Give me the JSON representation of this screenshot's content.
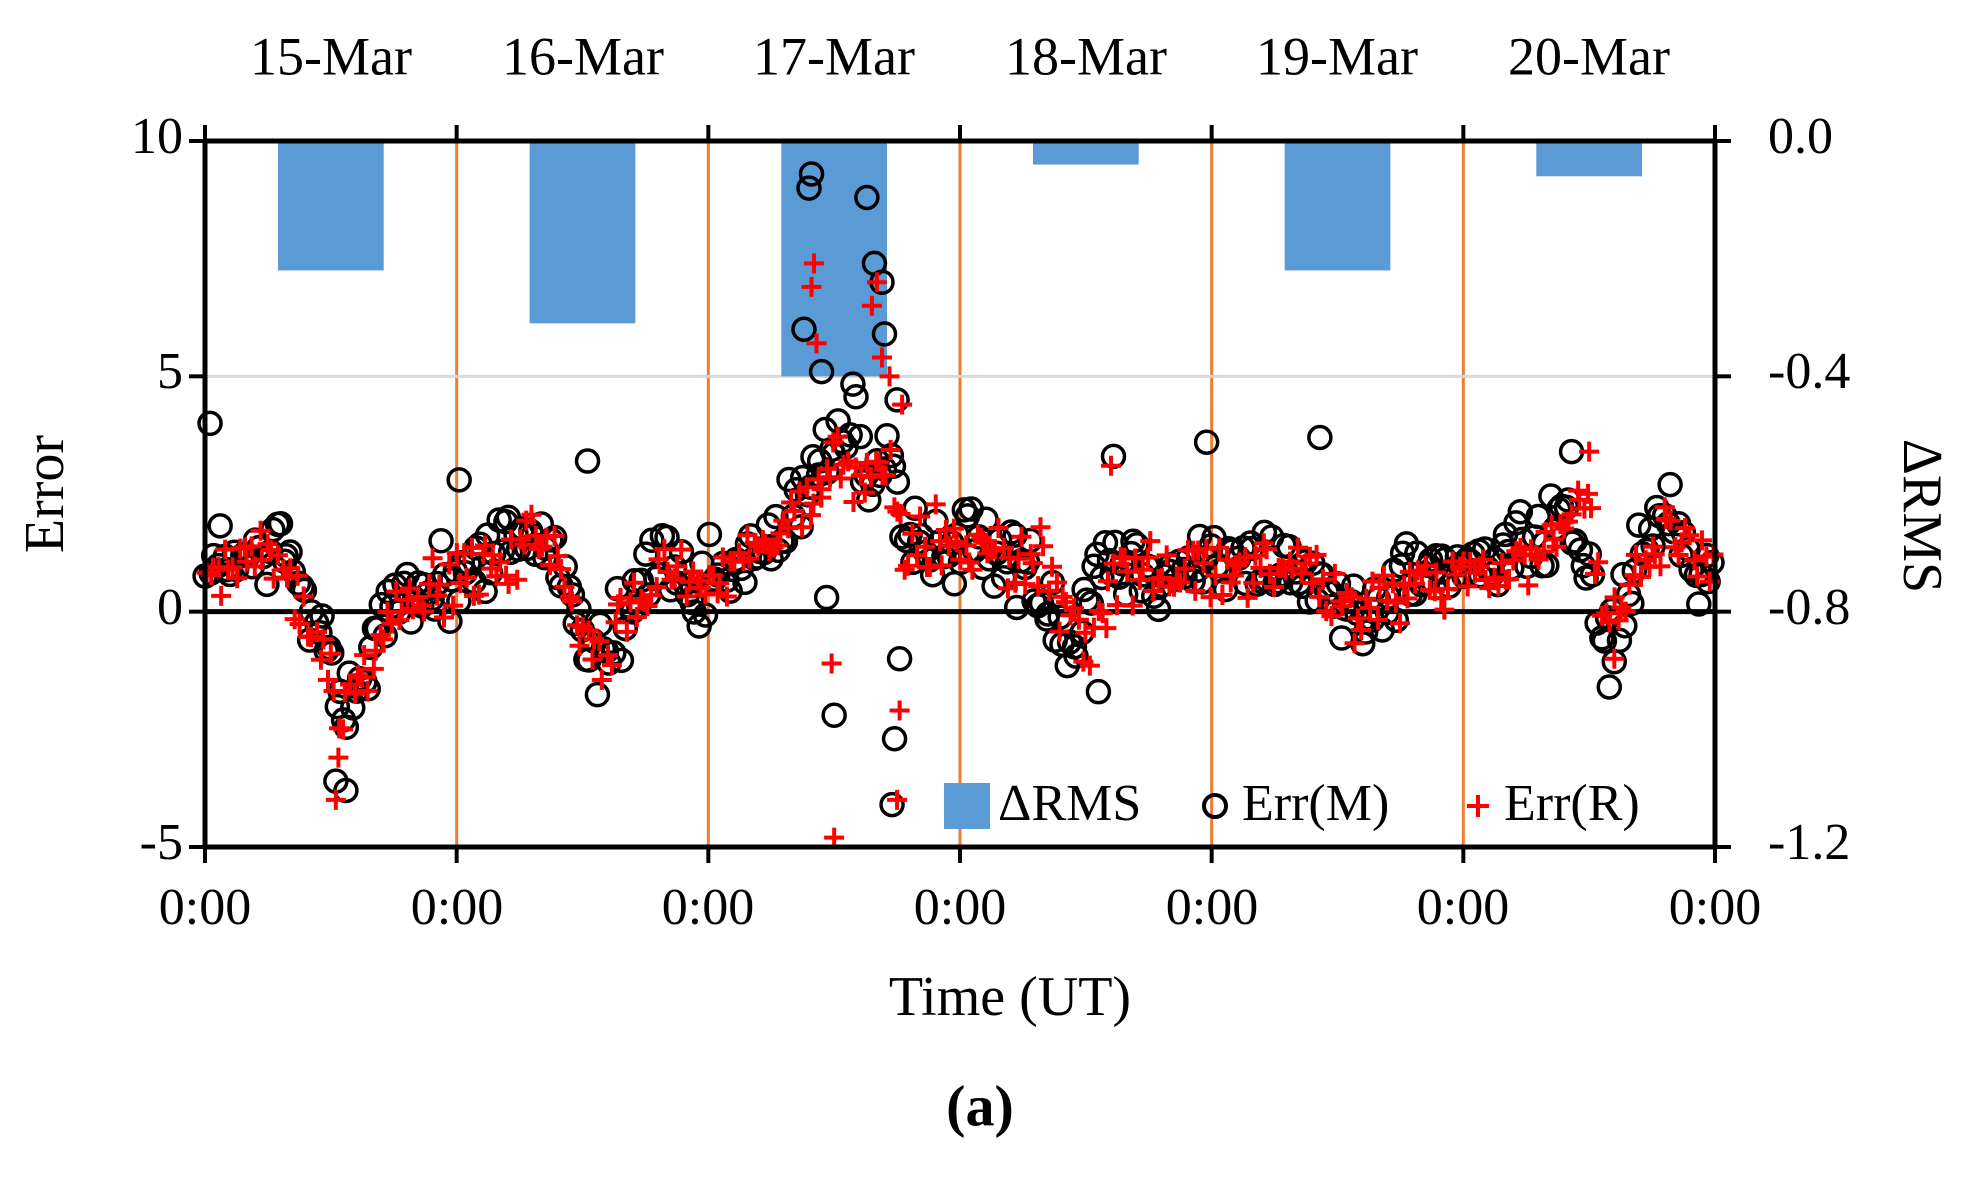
{
  "chart_data": {
    "type": "bar+scatter",
    "panel_label": "(a)",
    "xlabel": "Time (UT)",
    "ylabel_left": "Error",
    "ylabel_right": "ΔRMS",
    "left_axis": {
      "min": -5,
      "max": 10,
      "ticks": [
        10,
        5,
        0,
        -5
      ],
      "tick_labels": [
        "10",
        "5",
        "0",
        "-5"
      ]
    },
    "right_axis": {
      "min": -1.2,
      "max": 0.0,
      "ticks": [
        0.0,
        -0.4,
        -0.8,
        -1.2
      ],
      "tick_labels": [
        "0.0",
        "-0.4",
        "-0.8",
        "-1.2"
      ]
    },
    "x_days": 6,
    "x_tick_labels": [
      "0:00",
      "0:00",
      "0:00",
      "0:00",
      "0:00",
      "0:00",
      "0:00"
    ],
    "dates": [
      "15-Mar",
      "16-Mar",
      "17-Mar",
      "18-Mar",
      "19-Mar",
      "20-Mar"
    ],
    "legend": [
      "ΔRMS",
      "Err(M)",
      "Err(R)"
    ],
    "colors": {
      "bar": "#5b9bd5",
      "marker_m": "#000000",
      "marker_r": "#ff0000",
      "day_line": "#ed7d31",
      "grid": "#d9d9d9"
    },
    "delta_rms": [
      -0.22,
      -0.31,
      -0.4,
      -0.04,
      -0.22,
      -0.06
    ],
    "err_m_anchors": [
      [
        0.0,
        1.0
      ],
      [
        0.05,
        1.2
      ],
      [
        0.15,
        0.9
      ],
      [
        0.3,
        1.4
      ],
      [
        0.42,
        0.0
      ],
      [
        0.5,
        -1.0
      ],
      [
        0.55,
        -2.0
      ],
      [
        0.62,
        -1.2
      ],
      [
        0.7,
        -0.4
      ],
      [
        0.85,
        0.6
      ],
      [
        1.0,
        0.7
      ],
      [
        1.15,
        1.2
      ],
      [
        1.25,
        1.8
      ],
      [
        1.4,
        1.3
      ],
      [
        1.45,
        0.6
      ],
      [
        1.52,
        -0.8
      ],
      [
        1.58,
        -1.2
      ],
      [
        1.65,
        -0.2
      ],
      [
        1.8,
        1.2
      ],
      [
        1.95,
        0.0
      ],
      [
        2.0,
        0.6
      ],
      [
        2.15,
        1.0
      ],
      [
        2.25,
        1.5
      ],
      [
        2.35,
        2.0
      ],
      [
        2.45,
        3.2
      ],
      [
        2.52,
        3.8
      ],
      [
        2.55,
        4.2
      ],
      [
        2.58,
        4.8
      ],
      [
        2.62,
        2.5
      ],
      [
        2.72,
        3.2
      ],
      [
        2.78,
        1.0
      ],
      [
        2.85,
        1.6
      ],
      [
        2.95,
        1.5
      ],
      [
        3.1,
        1.3
      ],
      [
        3.25,
        1.0
      ],
      [
        3.38,
        0.0
      ],
      [
        3.45,
        -0.8
      ],
      [
        3.55,
        1.2
      ],
      [
        3.7,
        1.0
      ],
      [
        3.9,
        0.9
      ],
      [
        4.0,
        1.0
      ],
      [
        4.2,
        1.1
      ],
      [
        4.35,
        1.0
      ],
      [
        4.5,
        0.1
      ],
      [
        4.65,
        0.1
      ],
      [
        4.8,
        0.8
      ],
      [
        5.0,
        0.9
      ],
      [
        5.15,
        1.1
      ],
      [
        5.3,
        1.5
      ],
      [
        5.42,
        2.2
      ],
      [
        5.5,
        0.8
      ],
      [
        5.55,
        -0.2
      ],
      [
        5.6,
        -1.0
      ],
      [
        5.7,
        1.2
      ],
      [
        5.78,
        2.0
      ],
      [
        5.85,
        1.9
      ],
      [
        5.9,
        1.0
      ],
      [
        6.0,
        0.8
      ]
    ],
    "err_r_anchors": [
      [
        0.0,
        0.8
      ],
      [
        0.15,
        1.0
      ],
      [
        0.3,
        1.1
      ],
      [
        0.45,
        -0.5
      ],
      [
        0.52,
        -2.0
      ],
      [
        0.58,
        -1.5
      ],
      [
        0.7,
        -0.2
      ],
      [
        0.9,
        0.6
      ],
      [
        1.0,
        0.8
      ],
      [
        1.2,
        1.1
      ],
      [
        1.35,
        1.6
      ],
      [
        1.45,
        0.2
      ],
      [
        1.55,
        -1.0
      ],
      [
        1.7,
        0.0
      ],
      [
        1.85,
        1.0
      ],
      [
        2.0,
        0.6
      ],
      [
        2.2,
        1.2
      ],
      [
        2.4,
        2.2
      ],
      [
        2.52,
        3.5
      ],
      [
        2.6,
        3.0
      ],
      [
        2.72,
        3.0
      ],
      [
        2.78,
        1.2
      ],
      [
        2.9,
        1.4
      ],
      [
        3.1,
        1.2
      ],
      [
        3.3,
        1.1
      ],
      [
        3.42,
        0.2
      ],
      [
        3.5,
        -0.6
      ],
      [
        3.65,
        1.0
      ],
      [
        3.85,
        0.9
      ],
      [
        4.0,
        1.0
      ],
      [
        4.2,
        0.9
      ],
      [
        4.4,
        1.1
      ],
      [
        4.55,
        0.0
      ],
      [
        4.7,
        0.2
      ],
      [
        4.85,
        0.6
      ],
      [
        5.0,
        0.8
      ],
      [
        5.2,
        1.0
      ],
      [
        5.4,
        1.6
      ],
      [
        5.5,
        2.2
      ],
      [
        5.58,
        -0.6
      ],
      [
        5.68,
        0.8
      ],
      [
        5.8,
        1.8
      ],
      [
        5.9,
        1.0
      ],
      [
        6.0,
        0.7
      ]
    ],
    "err_m_outliers": [
      [
        0.02,
        4.0
      ],
      [
        0.52,
        -3.6
      ],
      [
        0.56,
        -3.8
      ],
      [
        2.41,
        9.3
      ],
      [
        2.4,
        9.0
      ],
      [
        2.45,
        5.1
      ],
      [
        2.5,
        -2.2
      ],
      [
        2.47,
        0.3
      ],
      [
        2.63,
        8.8
      ],
      [
        2.66,
        7.4
      ],
      [
        2.69,
        7.0
      ],
      [
        2.7,
        5.9
      ],
      [
        2.73,
        -4.1
      ],
      [
        2.74,
        -2.7
      ],
      [
        2.76,
        -1.0
      ],
      [
        2.38,
        6.0
      ],
      [
        3.61,
        3.3
      ],
      [
        3.55,
        -1.7
      ],
      [
        3.98,
        3.6
      ],
      [
        4.43,
        3.7
      ],
      [
        5.58,
        -1.6
      ],
      [
        5.43,
        3.4
      ],
      [
        1.01,
        2.8
      ],
      [
        1.52,
        3.2
      ],
      [
        2.75,
        4.5
      ]
    ],
    "err_r_outliers": [
      [
        0.52,
        -4.0
      ],
      [
        0.53,
        -3.1
      ],
      [
        2.42,
        7.4
      ],
      [
        2.41,
        6.9
      ],
      [
        2.43,
        5.7
      ],
      [
        2.49,
        -1.1
      ],
      [
        2.5,
        -4.8
      ],
      [
        2.65,
        6.5
      ],
      [
        2.67,
        7.0
      ],
      [
        2.69,
        5.4
      ],
      [
        2.72,
        5.0
      ],
      [
        2.76,
        -2.1
      ],
      [
        2.75,
        -4.0
      ],
      [
        2.77,
        4.4
      ],
      [
        3.6,
        3.1
      ],
      [
        5.5,
        3.4
      ],
      [
        5.6,
        -1.0
      ],
      [
        2.45,
        2.6
      ]
    ]
  }
}
